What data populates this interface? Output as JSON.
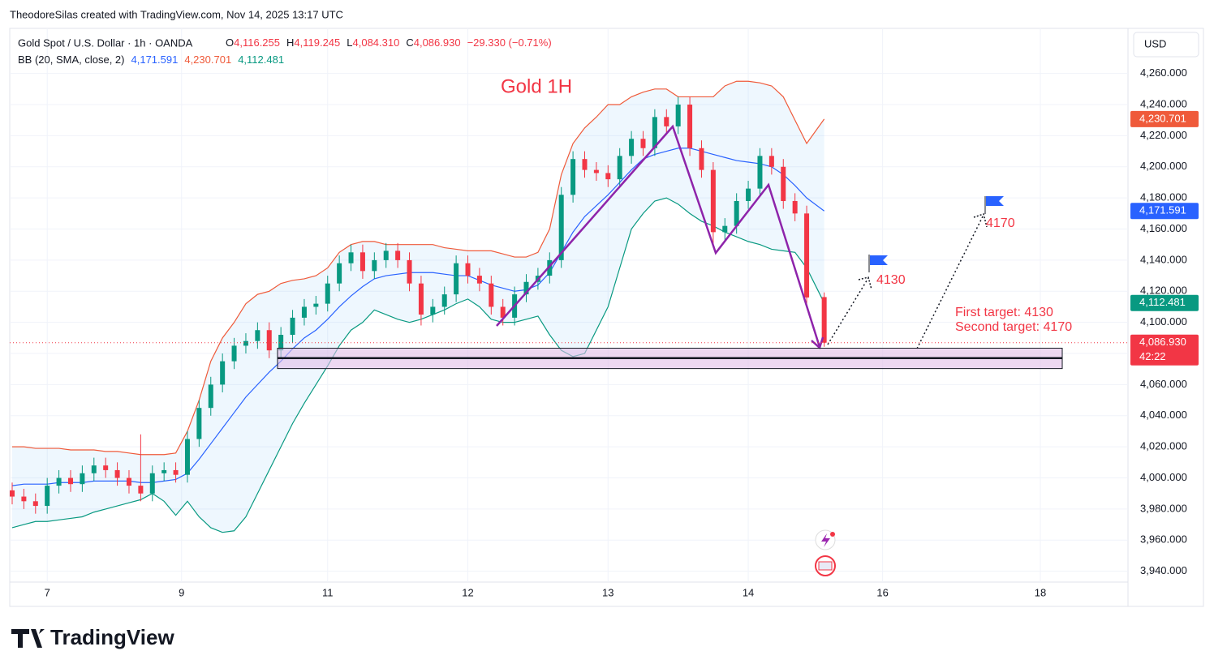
{
  "header": {
    "attribution": "TheodoreSilas created with TradingView.com, Nov 14, 2025 13:17 UTC",
    "logo": "TradingView"
  },
  "chart_data": {
    "type": "candlestick",
    "title": "Gold 1H",
    "symbol": "Gold Spot / U.S. Dollar · 1h · OANDA",
    "legend": [
      {
        "key": "O",
        "value": "4,116.255"
      },
      {
        "key": "H",
        "value": "4,119.245"
      },
      {
        "key": "L",
        "value": "4,084.310"
      },
      {
        "key": "C",
        "value": "4,086.930"
      }
    ],
    "change": "−29.330 (−0.71%)",
    "indicator": {
      "name": "BB (20, SMA, close, 2)",
      "values": [
        {
          "label": "4,171.591",
          "color": "#2962ff"
        },
        {
          "label": "4,230.701",
          "color": "#ef5a3a"
        },
        {
          "label": "4,112.481",
          "color": "#089981"
        }
      ]
    },
    "currency": "USD",
    "up_color": "#089981",
    "down_color": "#f23645",
    "x": [
      0,
      2,
      4,
      6,
      8,
      10,
      12,
      14,
      16,
      18,
      20,
      22,
      24,
      26,
      28,
      30,
      32,
      34,
      36,
      38,
      40,
      42,
      44,
      46,
      48,
      50,
      52,
      54,
      56,
      58,
      60,
      62,
      64,
      66,
      68,
      70,
      72,
      74,
      76,
      78,
      80,
      82,
      84,
      86,
      88,
      90,
      92,
      94,
      96,
      98,
      100,
      102,
      104,
      106,
      108,
      110,
      112,
      114,
      116,
      118,
      120,
      122,
      124,
      126,
      128,
      130,
      132,
      134,
      136,
      139
    ],
    "open": [
      3992,
      3988,
      3985,
      3982,
      3995,
      4000,
      3996,
      4003,
      4008,
      4005,
      4000,
      3995,
      3990,
      4003,
      4005,
      4002,
      4025,
      4045,
      4060,
      4075,
      4085,
      4088,
      4095,
      4082,
      4092,
      4103,
      4110,
      4112,
      4125,
      4138,
      4145,
      4133,
      4140,
      4146,
      4140,
      4125,
      4105,
      4110,
      4118,
      4138,
      4130,
      4125,
      4110,
      4103,
      4118,
      4126,
      4130,
      4140,
      4182,
      4205,
      4198,
      4196,
      4192,
      4207,
      4218,
      4212,
      4232,
      4226,
      4240,
      4212,
      4198,
      4158,
      4162,
      4178,
      4186,
      4207,
      4200,
      4178,
      4170,
      4116.255
    ],
    "high": [
      3997,
      3993,
      3990,
      4000,
      4005,
      4005,
      4008,
      4013,
      4013,
      4010,
      4005,
      4028,
      4008,
      4010,
      4010,
      4030,
      4050,
      4065,
      4080,
      4090,
      4093,
      4100,
      4100,
      4097,
      4108,
      4115,
      4117,
      4130,
      4143,
      4150,
      4150,
      4145,
      4151,
      4151,
      4145,
      4130,
      4115,
      4123,
      4143,
      4143,
      4135,
      4130,
      4115,
      4123,
      4131,
      4135,
      4145,
      4187,
      4210,
      4210,
      4203,
      4201,
      4212,
      4223,
      4223,
      4237,
      4237,
      4245,
      4245,
      4217,
      4203,
      4167,
      4183,
      4191,
      4212,
      4212,
      4205,
      4183,
      4175,
      4119.245
    ],
    "low": [
      3983,
      3980,
      3977,
      3977,
      3990,
      3991,
      3991,
      3998,
      4000,
      3995,
      3990,
      3985,
      3985,
      3998,
      3997,
      3997,
      4020,
      4040,
      4055,
      4070,
      4080,
      4083,
      4077,
      4077,
      4087,
      4098,
      4105,
      4107,
      4120,
      4133,
      4128,
      4128,
      4135,
      4135,
      4120,
      4098,
      4100,
      4105,
      4113,
      4125,
      4120,
      4105,
      4098,
      4098,
      4113,
      4121,
      4125,
      4135,
      4177,
      4193,
      4191,
      4187,
      4187,
      4202,
      4207,
      4207,
      4221,
      4221,
      4207,
      4193,
      4150,
      4153,
      4157,
      4173,
      4181,
      4195,
      4173,
      4165,
      4111,
      4084.31
    ],
    "close": [
      3988,
      3985,
      3982,
      3995,
      4000,
      3996,
      4003,
      4008,
      4005,
      4000,
      3995,
      3990,
      4003,
      4005,
      4002,
      4025,
      4045,
      4060,
      4075,
      4085,
      4088,
      4095,
      4082,
      4092,
      4103,
      4110,
      4112,
      4125,
      4138,
      4145,
      4133,
      4140,
      4146,
      4140,
      4125,
      4105,
      4110,
      4118,
      4138,
      4130,
      4125,
      4110,
      4103,
      4118,
      4126,
      4130,
      4140,
      4182,
      4205,
      4198,
      4196,
      4192,
      4207,
      4218,
      4212,
      4232,
      4226,
      4240,
      4212,
      4198,
      4158,
      4162,
      4178,
      4186,
      4207,
      4200,
      4178,
      4170,
      4116,
      4086.93
    ],
    "series": [
      {
        "name": "upper",
        "color": "#ef5a3a",
        "values": [
          4020,
          4020,
          4019,
          4019,
          4019,
          4018,
          4018,
          4018,
          4017,
          4017,
          4016,
          4015,
          4015,
          4015,
          4016,
          4030,
          4050,
          4075,
          4090,
          4100,
          4112,
          4118,
          4120,
          4125,
          4127,
          4128,
          4130,
          4135,
          4145,
          4150,
          4152,
          4152,
          4150,
          4150,
          4150,
          4150,
          4150,
          4148,
          4147,
          4146,
          4146,
          4146,
          4144,
          4142,
          4142,
          4145,
          4160,
          4195,
          4215,
          4225,
          4232,
          4240,
          4240,
          4245,
          4248,
          4250,
          4250,
          4245,
          4245,
          4245,
          4245,
          4252,
          4255,
          4255,
          4254,
          4252,
          4245,
          4230,
          4215,
          4230.701
        ]
      },
      {
        "name": "basis",
        "color": "#2962ff",
        "values": [
          3995,
          3996,
          3996,
          3996,
          3997,
          3997,
          3997,
          3998,
          3998,
          3998,
          3998,
          3997,
          3997,
          3998,
          3999,
          4003,
          4012,
          4022,
          4032,
          4042,
          4052,
          4060,
          4068,
          4075,
          4083,
          4090,
          4095,
          4102,
          4110,
          4117,
          4123,
          4128,
          4130,
          4131,
          4132,
          4132,
          4132,
          4131,
          4130,
          4130,
          4127,
          4124,
          4122,
          4120,
          4121,
          4124,
          4132,
          4145,
          4158,
          4168,
          4175,
          4182,
          4190,
          4198,
          4205,
          4208,
          4210,
          4212,
          4212,
          4210,
          4208,
          4206,
          4204,
          4203,
          4202,
          4200,
          4195,
          4188,
          4180,
          4171.591
        ]
      },
      {
        "name": "lower",
        "color": "#089981",
        "values": [
          3968,
          3970,
          3972,
          3972,
          3973,
          3974,
          3975,
          3978,
          3980,
          3982,
          3984,
          3986,
          3990,
          3985,
          3976,
          3985,
          3975,
          3968,
          3965,
          3966,
          3975,
          3990,
          4005,
          4020,
          4035,
          4048,
          4060,
          4072,
          4085,
          4095,
          4100,
          4108,
          4105,
          4102,
          4100,
          4102,
          4105,
          4108,
          4112,
          4115,
          4110,
          4102,
          4100,
          4100,
          4102,
          4104,
          4092,
          4082,
          4078,
          4080,
          4095,
          4110,
          4135,
          4160,
          4170,
          4178,
          4180,
          4176,
          4170,
          4165,
          4162,
          4158,
          4155,
          4152,
          4150,
          4147,
          4146,
          4145,
          4135,
          4112.481
        ]
      }
    ],
    "price_labels": [
      {
        "value": 4230.701,
        "label": "4,230.701",
        "color": "#ef5a3a"
      },
      {
        "value": 4171.591,
        "label": "4,171.591",
        "color": "#2962ff"
      },
      {
        "value": 4112.481,
        "label": "4,112.481",
        "color": "#089981"
      },
      {
        "value": 4086.93,
        "label": "4,086.930",
        "color": "#f23645",
        "countdown": "42:22"
      }
    ],
    "zone": [
      4070.3,
      4083.4
    ],
    "zone_line": 4077,
    "annotations": {
      "target1": "4130",
      "target2": "4170",
      "first": "First target: 4130",
      "second": "Second target: 4170"
    },
    "xlim": [
      0,
      191
    ],
    "ylim": [
      3932,
      4289
    ],
    "xticks": [
      {
        "value": 6,
        "label": "7"
      },
      {
        "value": 29,
        "label": "9"
      },
      {
        "value": 54,
        "label": "11"
      },
      {
        "value": 78,
        "label": "12"
      },
      {
        "value": 102,
        "label": "13"
      },
      {
        "value": 126,
        "label": "14"
      },
      {
        "value": 149,
        "label": "16"
      },
      {
        "value": 176,
        "label": "18"
      }
    ],
    "yticks": [
      {
        "value": 3940,
        "label": "3,940.000"
      },
      {
        "value": 3960,
        "label": "3,960.000"
      },
      {
        "value": 3980,
        "label": "3,980.000"
      },
      {
        "value": 4000,
        "label": "4,000.000"
      },
      {
        "value": 4020,
        "label": "4,020.000"
      },
      {
        "value": 4040,
        "label": "4,040.000"
      },
      {
        "value": 4060,
        "label": "4,060.000"
      },
      {
        "value": 4080,
        "label": "4,080.000"
      },
      {
        "value": 4100,
        "label": "4,100.000"
      },
      {
        "value": 4120,
        "label": "4,120.000"
      },
      {
        "value": 4140,
        "label": "4,140.000"
      },
      {
        "value": 4160,
        "label": "4,160.000"
      },
      {
        "value": 4180,
        "label": "4,180.000"
      },
      {
        "value": 4200,
        "label": "4,200.000"
      },
      {
        "value": 4220,
        "label": "4,220.000"
      },
      {
        "value": 4240,
        "label": "4,240.000"
      },
      {
        "value": 4260,
        "label": "4,260.000"
      }
    ],
    "grid": true
  }
}
